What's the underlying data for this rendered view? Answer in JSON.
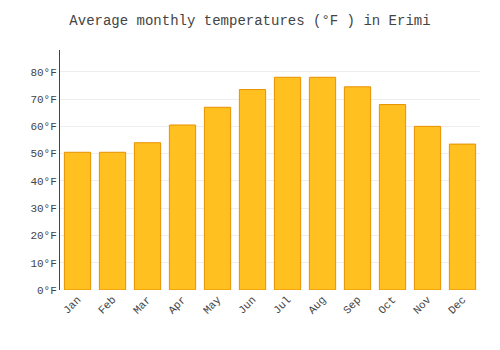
{
  "chart_data": {
    "type": "bar",
    "title": "Average monthly temperatures (°F ) in Erimi",
    "categories": [
      "Jan",
      "Feb",
      "Mar",
      "Apr",
      "May",
      "Jun",
      "Jul",
      "Aug",
      "Sep",
      "Oct",
      "Nov",
      "Dec"
    ],
    "values": [
      50.5,
      50.5,
      54.0,
      60.5,
      67.0,
      73.5,
      78.0,
      78.0,
      74.5,
      68.0,
      60.0,
      53.5
    ],
    "color": "#FFC020",
    "ylim": [
      0,
      88
    ],
    "yticks": [
      {
        "value": 0,
        "label": "0°F"
      },
      {
        "value": 10,
        "label": "10°F"
      },
      {
        "value": 20,
        "label": "20°F"
      },
      {
        "value": 30,
        "label": "30°F"
      },
      {
        "value": 40,
        "label": "40°F"
      },
      {
        "value": 50,
        "label": "50°F"
      },
      {
        "value": 60,
        "label": "60°F"
      },
      {
        "value": 70,
        "label": "70°F"
      },
      {
        "value": 80,
        "label": "80°F"
      }
    ],
    "grid": true
  }
}
